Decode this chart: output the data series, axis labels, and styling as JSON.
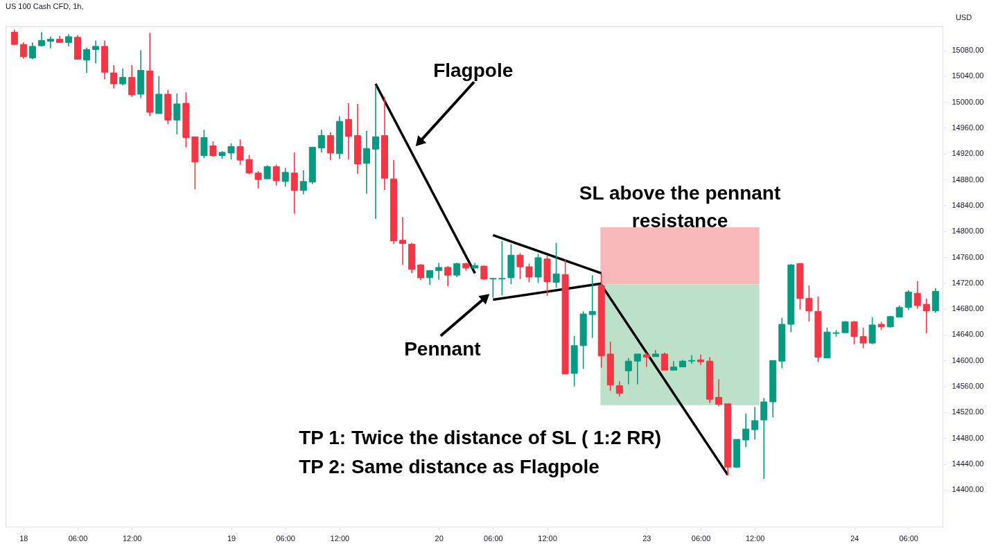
{
  "chart_data": {
    "type": "candlestick",
    "title": "US 100 Cash CFD, 1h,",
    "ylabel": "USD",
    "categories": [
      null,
      "18",
      null,
      null,
      null,
      null,
      null,
      "06:00",
      null,
      null,
      null,
      null,
      null,
      "12:00",
      null,
      null,
      null,
      null,
      null,
      null,
      null,
      null,
      null,
      null,
      "19",
      null,
      null,
      null,
      null,
      null,
      "06:00",
      null,
      null,
      null,
      null,
      null,
      "12:00",
      null,
      null,
      null,
      null,
      null,
      null,
      null,
      null,
      null,
      null,
      "20",
      null,
      null,
      null,
      null,
      null,
      "06:00",
      null,
      null,
      null,
      null,
      null,
      "12:00",
      null,
      null,
      null,
      null,
      null,
      null,
      null,
      null,
      null,
      null,
      "23",
      null,
      null,
      null,
      null,
      null,
      "06:00",
      null,
      null,
      null,
      null,
      null,
      "12:00",
      null,
      null,
      null,
      null,
      null,
      null,
      null,
      null,
      null,
      null,
      "24",
      null,
      null,
      null,
      null,
      null,
      "06:00",
      null,
      null,
      null
    ],
    "ohlc": [
      [
        15108,
        15112,
        15088,
        15089
      ],
      [
        15089,
        15092,
        15067,
        15070
      ],
      [
        15068,
        15092,
        15066,
        15086
      ],
      [
        15087,
        15108,
        15086,
        15095
      ],
      [
        15094,
        15101,
        15083,
        15097
      ],
      [
        15097,
        15102,
        15092,
        15092
      ],
      [
        15092,
        15105,
        15086,
        15101
      ],
      [
        15100,
        15103,
        15066,
        15066
      ],
      [
        15065,
        15084,
        15045,
        15081
      ],
      [
        15081,
        15095,
        15060,
        15086
      ],
      [
        15086,
        15095,
        15035,
        15046
      ],
      [
        15045,
        15057,
        15021,
        15028
      ],
      [
        15028,
        15052,
        15026,
        15038
      ],
      [
        15038,
        15057,
        15008,
        15011
      ],
      [
        15012,
        15080,
        15006,
        15049
      ],
      [
        15048,
        15107,
        14978,
        14984
      ],
      [
        14982,
        15040,
        14982,
        15012
      ],
      [
        15012,
        15018,
        14966,
        14972
      ],
      [
        14972,
        15013,
        14950,
        14997
      ],
      [
        14998,
        15015,
        14930,
        14945
      ],
      [
        14946,
        14946,
        14865,
        14907
      ],
      [
        14917,
        14957,
        14913,
        14945
      ],
      [
        14932,
        14939,
        14915,
        14917
      ],
      [
        14917,
        14924,
        14912,
        14922
      ],
      [
        14921,
        14936,
        14911,
        14931
      ],
      [
        14931,
        14942,
        14903,
        14910
      ],
      [
        14911,
        14918,
        14888,
        14890
      ],
      [
        14890,
        14893,
        14866,
        14880
      ],
      [
        14881,
        14902,
        14881,
        14900
      ],
      [
        14900,
        14903,
        14871,
        14878
      ],
      [
        14877,
        14898,
        14869,
        14891
      ],
      [
        14890,
        14922,
        14827,
        14863
      ],
      [
        14863,
        14894,
        14857,
        14877
      ],
      [
        14876,
        14930,
        14873,
        14930
      ],
      [
        14929,
        14957,
        14922,
        14948
      ],
      [
        14948,
        14953,
        14910,
        14921
      ],
      [
        14920,
        14978,
        14912,
        14970
      ],
      [
        14973,
        14998,
        14911,
        14947
      ],
      [
        14948,
        14997,
        14889,
        14904
      ],
      [
        14905,
        14955,
        14858,
        14928
      ],
      [
        14927,
        15026,
        14819,
        14946
      ],
      [
        14948,
        15008,
        14864,
        14882
      ],
      [
        14881,
        14910,
        14780,
        14785
      ],
      [
        14786,
        14822,
        14748,
        14781
      ],
      [
        14780,
        14782,
        14735,
        14741
      ],
      [
        14748,
        14749,
        14724,
        14728
      ],
      [
        14728,
        14740,
        14717,
        14739
      ],
      [
        14739,
        14751,
        14725,
        14744
      ],
      [
        14744,
        14746,
        14715,
        14732
      ],
      [
        14732,
        14751,
        14729,
        14750
      ],
      [
        14750,
        14751,
        14739,
        14743
      ],
      [
        14743,
        14751,
        14743,
        14747
      ],
      [
        14746,
        14747,
        14725,
        14726
      ],
      [
        14726,
        14727,
        14697,
        14727
      ],
      [
        14726,
        14785,
        14701,
        14727
      ],
      [
        14728,
        14780,
        14718,
        14763
      ],
      [
        14763,
        14766,
        14726,
        14745
      ],
      [
        14745,
        14750,
        14721,
        14729
      ],
      [
        14729,
        14765,
        14720,
        14759
      ],
      [
        14757,
        14762,
        14700,
        14722
      ],
      [
        14721,
        14782,
        14713,
        14734
      ],
      [
        14733,
        14756,
        14579,
        14579
      ],
      [
        14580,
        14638,
        14560,
        14623
      ],
      [
        14623,
        14676,
        14587,
        14672
      ],
      [
        14671,
        14732,
        14635,
        14676
      ],
      [
        14716,
        14734,
        14589,
        14607
      ],
      [
        14610,
        14629,
        14553,
        14562
      ],
      [
        14561,
        14568,
        14544,
        14549
      ],
      [
        14584,
        14604,
        14563,
        14599
      ],
      [
        14599,
        14610,
        14563,
        14610
      ],
      [
        14609,
        14612,
        14590,
        14605
      ],
      [
        14606,
        14616,
        14606,
        14610
      ],
      [
        14610,
        14612,
        14585,
        14585
      ],
      [
        14585,
        14599,
        14585,
        14590
      ],
      [
        14590,
        14601,
        14590,
        14599
      ],
      [
        14599,
        14608,
        14595,
        14600
      ],
      [
        14601,
        14609,
        14593,
        14598
      ],
      [
        14599,
        14605,
        14534,
        14540
      ],
      [
        14543,
        14571,
        14529,
        14532
      ],
      [
        14533,
        14533,
        14422,
        14435
      ],
      [
        14435,
        14478,
        14434,
        14478
      ],
      [
        14477,
        14518,
        14466,
        14494
      ],
      [
        14493,
        14528,
        14478,
        14507
      ],
      [
        14508,
        14542,
        14417,
        14536
      ],
      [
        14536,
        14600,
        14512,
        14600
      ],
      [
        14599,
        14666,
        14588,
        14656
      ],
      [
        14656,
        14749,
        14644,
        14748
      ],
      [
        14750,
        14751,
        14679,
        14696
      ],
      [
        14696,
        14716,
        14660,
        14677
      ],
      [
        14676,
        14699,
        14598,
        14605
      ],
      [
        14604,
        14651,
        14604,
        14644
      ],
      [
        14642,
        14647,
        14637,
        14643
      ],
      [
        14643,
        14661,
        14643,
        14660
      ],
      [
        14660,
        14661,
        14625,
        14637
      ],
      [
        14637,
        14651,
        14619,
        14627
      ],
      [
        14627,
        14667,
        14625,
        14655
      ],
      [
        14656,
        14660,
        14647,
        14652
      ],
      [
        14652,
        14669,
        14651,
        14668
      ],
      [
        14667,
        14685,
        14667,
        14682
      ],
      [
        14682,
        14709,
        14678,
        14706
      ],
      [
        14704,
        14723,
        14680,
        14685
      ],
      [
        14687,
        14696,
        14642,
        14677
      ],
      [
        14677,
        14712,
        14674,
        14707
      ]
    ],
    "colors": [
      "#f23645",
      "#f23645",
      "#089981",
      "#089981",
      "#089981",
      "#f23645",
      "#089981",
      "#f23645",
      "#089981",
      "#089981",
      "#f23645",
      "#f23645",
      "#089981",
      "#f23645",
      "#089981",
      "#f23645",
      "#089981",
      "#f23645",
      "#089981",
      "#f23645",
      "#f23645",
      "#089981",
      "#f23645",
      "#089981",
      "#089981",
      "#f23645",
      "#f23645",
      "#f23645",
      "#089981",
      "#f23645",
      "#089981",
      "#f23645",
      "#089981",
      "#089981",
      "#089981",
      "#f23645",
      "#089981",
      "#f23645",
      "#f23645",
      "#089981",
      "#089981",
      "#f23645",
      "#f23645",
      "#f23645",
      "#f23645",
      "#f23645",
      "#089981",
      "#089981",
      "#f23645",
      "#089981",
      "#f23645",
      "#089981",
      "#f23645",
      "#089981",
      "#089981",
      "#089981",
      "#f23645",
      "#f23645",
      "#089981",
      "#f23645",
      "#089981",
      "#f23645",
      "#089981",
      "#089981",
      "#089981",
      "#f23645",
      "#f23645",
      "#f23645",
      "#089981",
      "#089981",
      "#f23645",
      "#089981",
      "#f23645",
      "#089981",
      "#089981",
      "#089981",
      "#f23645",
      "#f23645",
      "#f23645",
      "#f23645",
      "#089981",
      "#089981",
      "#089981",
      "#089981",
      "#089981",
      "#089981",
      "#089981",
      "#f23645",
      "#f23645",
      "#f23645",
      "#089981",
      "#089981",
      "#089981",
      "#f23645",
      "#f23645",
      "#089981",
      "#f23645",
      "#089981",
      "#089981",
      "#089981",
      "#f23645",
      "#f23645",
      "#089981"
    ],
    "ylim": [
      14343,
      15117
    ],
    "yticks": [
      {
        "value": 14400,
        "label": "14400.00"
      },
      {
        "value": 14440,
        "label": "14440.00"
      },
      {
        "value": 14480,
        "label": "14480.00"
      },
      {
        "value": 14520,
        "label": "14520.00"
      },
      {
        "value": 14560,
        "label": "14560.00"
      },
      {
        "value": 14600,
        "label": "14600.00"
      },
      {
        "value": 14640,
        "label": "14640.00"
      },
      {
        "value": 14680,
        "label": "14680.00"
      },
      {
        "value": 14720,
        "label": "14720.00"
      },
      {
        "value": 14760,
        "label": "14760.00"
      },
      {
        "value": 14800,
        "label": "14800.00"
      },
      {
        "value": 14840,
        "label": "14840.00"
      },
      {
        "value": 14880,
        "label": "14880.00"
      },
      {
        "value": 14920,
        "label": "14920.00"
      },
      {
        "value": 14960,
        "label": "14960.00"
      },
      {
        "value": 15000,
        "label": "15000.00"
      },
      {
        "value": 15040,
        "label": "15040.00"
      },
      {
        "value": 15080,
        "label": "15080.00"
      }
    ],
    "grid": false,
    "bands": [
      {
        "axis": "y",
        "from": 14718,
        "to": 14806,
        "color": "#f8b8b9"
      },
      {
        "axis": "y",
        "from": 14531,
        "to": 14718,
        "color": "#bde0c9"
      }
    ],
    "series": [
      {
        "type": "line",
        "color": "#000000",
        "values": [
          null,
          null,
          null,
          null,
          null,
          null,
          null,
          null,
          null,
          null,
          null,
          null,
          null,
          null,
          null,
          null,
          null,
          null,
          null,
          null,
          null,
          null,
          null,
          null,
          null,
          null,
          null,
          null,
          null,
          null,
          null,
          null,
          null,
          null,
          null,
          null,
          null,
          null,
          null,
          null,
          15028,
          null,
          null,
          null,
          null,
          null,
          null,
          null,
          null,
          null,
          null,
          14735,
          null,
          null,
          null,
          null,
          null,
          null,
          null,
          null,
          null,
          null,
          null,
          null,
          null,
          null,
          null,
          null,
          null,
          null,
          null,
          null,
          null,
          null,
          null,
          null,
          null,
          null,
          null,
          null,
          null,
          null,
          null,
          null,
          null,
          null,
          null,
          null,
          null,
          null,
          null,
          null,
          null,
          null,
          null,
          null,
          null,
          null,
          null,
          null,
          null,
          null,
          null
        ]
      },
      {
        "type": "line",
        "color": "#000000",
        "values": [
          null,
          null,
          null,
          null,
          null,
          null,
          null,
          null,
          null,
          null,
          null,
          null,
          null,
          null,
          null,
          null,
          null,
          null,
          null,
          null,
          null,
          null,
          null,
          null,
          null,
          null,
          null,
          null,
          null,
          null,
          null,
          null,
          null,
          null,
          null,
          null,
          null,
          null,
          null,
          null,
          null,
          null,
          null,
          null,
          null,
          null,
          null,
          null,
          null,
          null,
          null,
          null,
          null,
          14794,
          null,
          null,
          null,
          null,
          null,
          null,
          null,
          null,
          null,
          null,
          null,
          14735,
          null,
          null,
          null,
          null,
          null,
          null,
          null,
          null,
          null,
          null,
          null,
          null,
          null,
          null,
          null,
          null,
          null,
          null,
          null,
          null,
          null,
          null,
          null,
          null,
          null,
          null,
          null,
          null,
          null,
          null,
          null,
          null,
          null,
          null,
          null,
          null,
          null
        ]
      },
      {
        "type": "line",
        "color": "#000000",
        "values": [
          null,
          null,
          null,
          null,
          null,
          null,
          null,
          null,
          null,
          null,
          null,
          null,
          null,
          null,
          null,
          null,
          null,
          null,
          null,
          null,
          null,
          null,
          null,
          null,
          null,
          null,
          null,
          null,
          null,
          null,
          null,
          null,
          null,
          null,
          null,
          null,
          null,
          null,
          null,
          null,
          null,
          null,
          null,
          null,
          null,
          null,
          null,
          null,
          null,
          null,
          null,
          null,
          null,
          14694,
          null,
          null,
          null,
          null,
          null,
          null,
          null,
          null,
          null,
          null,
          null,
          14719,
          null,
          null,
          null,
          null,
          null,
          null,
          null,
          null,
          null,
          null,
          null,
          null,
          null,
          null,
          null,
          null,
          null,
          null,
          null,
          null,
          null,
          null,
          null,
          null,
          null,
          null,
          null,
          null,
          null,
          null,
          null,
          null,
          null,
          null,
          null,
          null,
          null
        ]
      },
      {
        "type": "line",
        "color": "#000000",
        "values": [
          null,
          null,
          null,
          null,
          null,
          null,
          null,
          null,
          null,
          null,
          null,
          null,
          null,
          null,
          null,
          null,
          null,
          null,
          null,
          null,
          null,
          null,
          null,
          null,
          null,
          null,
          null,
          null,
          null,
          null,
          null,
          null,
          null,
          null,
          null,
          null,
          null,
          null,
          null,
          null,
          null,
          null,
          null,
          null,
          null,
          null,
          null,
          null,
          null,
          null,
          null,
          null,
          null,
          null,
          null,
          null,
          null,
          null,
          null,
          null,
          null,
          null,
          null,
          null,
          null,
          14717,
          null,
          null,
          null,
          null,
          null,
          null,
          null,
          null,
          null,
          null,
          null,
          null,
          null,
          14423,
          null,
          null,
          null,
          null,
          null,
          null,
          null,
          null,
          null,
          null,
          null,
          null,
          null,
          null,
          null,
          null,
          null,
          null,
          null,
          null,
          null,
          null,
          null
        ]
      }
    ],
    "annotations": [
      "Flagpole",
      "Pennant",
      "SL above the pennant resistance",
      "TP 1: Twice the distance of SL ( 1:2 RR)",
      "TP 2: Same distance as Flagpole"
    ]
  }
}
